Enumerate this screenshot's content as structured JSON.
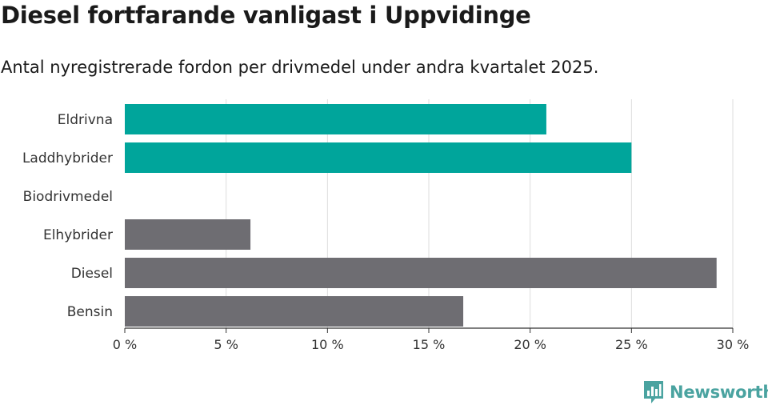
{
  "header": {
    "title": "Diesel fortfarande vanligast i Uppvidinge",
    "subtitle": "Antal nyregistrerade fordon per drivmedel under andra kvartalet 2025."
  },
  "brand": {
    "name": "Newsworthy",
    "logo_icon": "newsworthy-chart-icon",
    "color": "#4aa3a0"
  },
  "chart_data": {
    "type": "bar",
    "orientation": "horizontal",
    "title": "Diesel fortfarande vanligast i Uppvidinge",
    "subtitle": "Antal nyregistrerade fordon per drivmedel under andra kvartalet 2025.",
    "categories": [
      "Eldrivna",
      "Laddhybrider",
      "Biodrivmedel",
      "Elhybrider",
      "Diesel",
      "Bensin"
    ],
    "values": [
      20.8,
      25.0,
      0,
      6.2,
      29.2,
      16.7
    ],
    "colors": [
      "#00a59b",
      "#00a59b",
      "#00a59b",
      "#6e6d72",
      "#6e6d72",
      "#6e6d72"
    ],
    "xlim": [
      0,
      30
    ],
    "xticks": [
      0,
      5,
      10,
      15,
      20,
      25,
      30
    ],
    "xtick_labels": [
      "0 %",
      "5 %",
      "10 %",
      "15 %",
      "20 %",
      "25 %",
      "30 %"
    ],
    "grid": true,
    "legend": "none"
  }
}
